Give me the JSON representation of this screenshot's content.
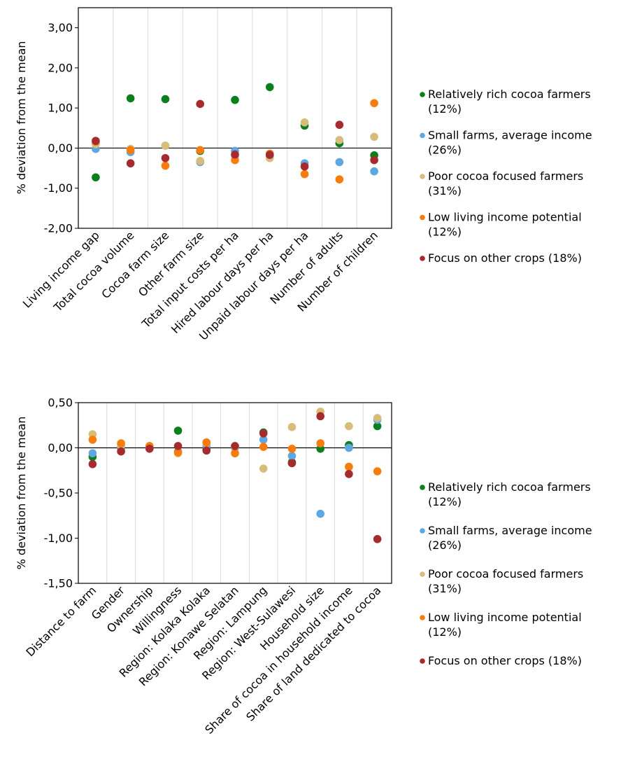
{
  "chart_data": [
    {
      "type": "scatter",
      "title": "",
      "ylabel": "% deviation from the mean",
      "ylim": [
        -2,
        3.5
      ],
      "yticks": [
        -2,
        -1,
        0,
        1,
        2,
        3
      ],
      "ytick_labels": [
        "-2,00",
        "-1,00",
        "0,00",
        "1,00",
        "2,00",
        "3,00"
      ],
      "grid": "vertical category gridlines",
      "legend_position": "right",
      "categories": [
        "Living income gap",
        "Total cocoa volume",
        "Cocoa farm size",
        "Other farm size",
        "Total input costs per ha",
        "Hired labour days per ha",
        "Unpaid labour days per ha",
        "Number of adults",
        "Number of children"
      ],
      "series": [
        {
          "name": "Relatively rich cocoa farmers",
          "legend_line1": "Relatively rich cocoa farmers",
          "legend_line2": "(12%)",
          "color": "#0a7f1b",
          "values": [
            -0.73,
            1.24,
            1.22,
            -0.07,
            1.2,
            1.52,
            0.56,
            0.12,
            -0.18
          ]
        },
        {
          "name": "Small farms, average income",
          "legend_line1": "Small farms, average income",
          "legend_line2": "(26%)",
          "color": "#5ea7e0",
          "values": [
            -0.02,
            -0.1,
            0.06,
            -0.35,
            -0.07,
            -0.18,
            -0.38,
            -0.35,
            -0.58
          ]
        },
        {
          "name": "Poor cocoa focused farmers",
          "legend_line1": "Poor cocoa focused farmers",
          "legend_line2": "(31%)",
          "color": "#d7bc7a",
          "values": [
            0.1,
            -0.02,
            0.06,
            -0.32,
            -0.2,
            -0.25,
            0.64,
            0.2,
            0.28
          ]
        },
        {
          "name": "Low living income potential",
          "legend_line1": "Low living income potential",
          "legend_line2": "(12%)",
          "color": "#f77c0c",
          "values": [
            0.16,
            -0.05,
            -0.44,
            -0.05,
            -0.3,
            -0.14,
            -0.65,
            -0.78,
            1.12
          ]
        },
        {
          "name": "Focus on other crops",
          "legend_line1": "Focus on other crops (18%)",
          "legend_line2": "",
          "color": "#a52b2f",
          "values": [
            0.18,
            -0.38,
            -0.25,
            1.1,
            -0.16,
            -0.17,
            -0.46,
            0.58,
            -0.3
          ]
        }
      ]
    },
    {
      "type": "scatter",
      "title": "",
      "ylabel": "% deviation from the mean",
      "ylim": [
        -1.5,
        0.5
      ],
      "yticks": [
        -1.5,
        -1,
        -0.5,
        0,
        0.5
      ],
      "ytick_labels": [
        "-1,50",
        "-1,00",
        "-0,50",
        "0,00",
        "0,50"
      ],
      "grid": "vertical category gridlines",
      "legend_position": "right",
      "categories": [
        "Distance to farm",
        "Gender",
        "Ownership",
        "Willingness",
        "Region: Kolaka Kolaka",
        "Region: Konawe Selatan",
        "Region: Lampung",
        "Region: West-Sulawesi",
        "Household size",
        "Share of cocoa in household income",
        "Share of land dedicated to cocoa"
      ],
      "series": [
        {
          "name": "Relatively rich cocoa farmers",
          "legend_line1": "Relatively rich cocoa farmers",
          "legend_line2": "(12%)",
          "color": "#0a7f1b",
          "values": [
            -0.1,
            0.0,
            0.01,
            0.19,
            -0.02,
            0.01,
            0.17,
            -0.16,
            -0.01,
            0.03,
            0.24
          ]
        },
        {
          "name": "Small farms, average income",
          "legend_line1": "Small farms, average income",
          "legend_line2": "(26%)",
          "color": "#5ea7e0",
          "values": [
            -0.06,
            0.01,
            0.0,
            -0.04,
            0.02,
            0.0,
            0.09,
            -0.09,
            -0.73,
            0.0,
            0.31
          ]
        },
        {
          "name": "Poor cocoa focused farmers",
          "legend_line1": "Poor cocoa focused farmers",
          "legend_line2": "(31%)",
          "color": "#d7bc7a",
          "values": [
            0.15,
            0.03,
            0.01,
            -0.06,
            0.05,
            0.01,
            -0.23,
            0.23,
            0.4,
            0.24,
            0.33
          ]
        },
        {
          "name": "Low living income potential",
          "legend_line1": "Low living income potential",
          "legend_line2": "(12%)",
          "color": "#f77c0c",
          "values": [
            0.09,
            0.05,
            0.02,
            -0.05,
            0.06,
            -0.06,
            0.01,
            -0.01,
            0.05,
            -0.21,
            -0.26
          ]
        },
        {
          "name": "Focus on other crops",
          "legend_line1": "Focus on other crops (18%)",
          "legend_line2": "",
          "color": "#a52b2f",
          "values": [
            -0.18,
            -0.04,
            -0.01,
            0.02,
            -0.03,
            0.02,
            0.16,
            -0.17,
            0.35,
            -0.29,
            -1.01
          ]
        }
      ]
    }
  ]
}
